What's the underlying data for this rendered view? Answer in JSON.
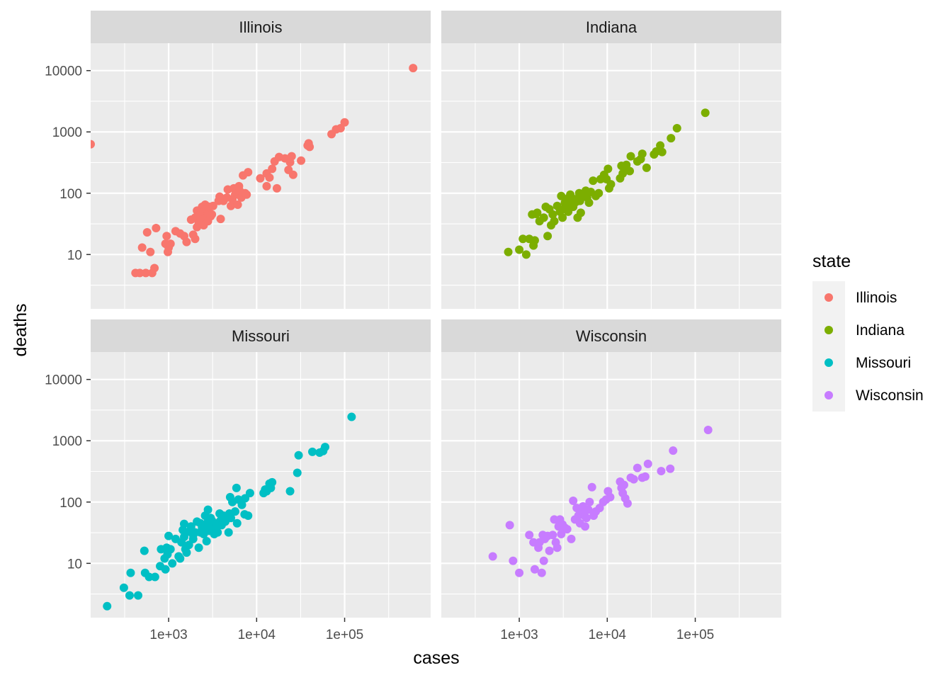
{
  "chart_data": {
    "type": "scatter",
    "facet_by": "state",
    "xlabel": "cases",
    "ylabel": "deaths",
    "x_scale": "log10",
    "y_scale": "log10",
    "xlim": [
      130,
      950000
    ],
    "ylim": [
      1.3,
      28000
    ],
    "x_ticks": [
      {
        "value": 1000,
        "label": "1e+03"
      },
      {
        "value": 10000,
        "label": "1e+04"
      },
      {
        "value": 100000,
        "label": "1e+05"
      }
    ],
    "y_ticks": [
      {
        "value": 10,
        "label": "10"
      },
      {
        "value": 100,
        "label": "100"
      },
      {
        "value": 1000,
        "label": "1000"
      },
      {
        "value": 10000,
        "label": "10000"
      }
    ],
    "grid": true,
    "legend": {
      "title": "state",
      "position": "right",
      "entries": [
        {
          "label": "Illinois",
          "color": "#F8766D"
        },
        {
          "label": "Indiana",
          "color": "#7CAE00"
        },
        {
          "label": "Missouri",
          "color": "#00BFC4"
        },
        {
          "label": "Wisconsin",
          "color": "#C77CFF"
        }
      ]
    },
    "series": [
      {
        "name": "Illinois",
        "color": "#F8766D",
        "points": [
          [
            130,
            630
          ],
          [
            420,
            5
          ],
          [
            470,
            5
          ],
          [
            500,
            13
          ],
          [
            550,
            5
          ],
          [
            570,
            23
          ],
          [
            620,
            11
          ],
          [
            650,
            5
          ],
          [
            690,
            6
          ],
          [
            720,
            27
          ],
          [
            920,
            15
          ],
          [
            950,
            20
          ],
          [
            980,
            11
          ],
          [
            1000,
            13
          ],
          [
            1050,
            15
          ],
          [
            1200,
            24
          ],
          [
            1350,
            22
          ],
          [
            1500,
            20
          ],
          [
            1600,
            16
          ],
          [
            1800,
            37
          ],
          [
            1900,
            21
          ],
          [
            2000,
            18
          ],
          [
            2000,
            40
          ],
          [
            2100,
            28
          ],
          [
            2100,
            52
          ],
          [
            2200,
            33
          ],
          [
            2200,
            43
          ],
          [
            2300,
            45
          ],
          [
            2400,
            37
          ],
          [
            2400,
            60
          ],
          [
            2500,
            30
          ],
          [
            2500,
            50
          ],
          [
            2600,
            65
          ],
          [
            2700,
            40
          ],
          [
            2700,
            55
          ],
          [
            2800,
            35
          ],
          [
            2900,
            48
          ],
          [
            2900,
            60
          ],
          [
            3000,
            42
          ],
          [
            3100,
            45
          ],
          [
            3200,
            62
          ],
          [
            3700,
            75
          ],
          [
            3800,
            88
          ],
          [
            3900,
            38
          ],
          [
            4200,
            75
          ],
          [
            4600,
            85
          ],
          [
            4700,
            115
          ],
          [
            5100,
            62
          ],
          [
            5300,
            80
          ],
          [
            5500,
            120
          ],
          [
            5700,
            95
          ],
          [
            6000,
            100
          ],
          [
            6100,
            65
          ],
          [
            6300,
            130
          ],
          [
            6400,
            110
          ],
          [
            6700,
            85
          ],
          [
            7000,
            195
          ],
          [
            7400,
            100
          ],
          [
            7700,
            95
          ],
          [
            8000,
            220
          ],
          [
            11000,
            175
          ],
          [
            13000,
            130
          ],
          [
            13000,
            210
          ],
          [
            14000,
            180
          ],
          [
            15000,
            250
          ],
          [
            16000,
            330
          ],
          [
            17000,
            120
          ],
          [
            18000,
            390
          ],
          [
            21000,
            370
          ],
          [
            23000,
            240
          ],
          [
            24000,
            320
          ],
          [
            25000,
            400
          ],
          [
            26000,
            200
          ],
          [
            32000,
            340
          ],
          [
            38000,
            600
          ],
          [
            39000,
            650
          ],
          [
            40000,
            570
          ],
          [
            71000,
            920
          ],
          [
            80000,
            1100
          ],
          [
            90000,
            1150
          ],
          [
            100000,
            1430
          ],
          [
            600000,
            11000
          ]
        ]
      },
      {
        "name": "Indiana",
        "color": "#7CAE00",
        "points": [
          [
            750,
            11
          ],
          [
            1000,
            12
          ],
          [
            1100,
            18
          ],
          [
            1200,
            10
          ],
          [
            1300,
            18
          ],
          [
            1400,
            45
          ],
          [
            1450,
            14
          ],
          [
            1500,
            17
          ],
          [
            1550,
            46
          ],
          [
            1600,
            48
          ],
          [
            1700,
            35
          ],
          [
            1900,
            40
          ],
          [
            2000,
            60
          ],
          [
            2100,
            20
          ],
          [
            2200,
            55
          ],
          [
            2300,
            30
          ],
          [
            2400,
            45
          ],
          [
            2500,
            35
          ],
          [
            2700,
            62
          ],
          [
            2900,
            50
          ],
          [
            3000,
            90
          ],
          [
            3100,
            40
          ],
          [
            3200,
            55
          ],
          [
            3300,
            70
          ],
          [
            3400,
            80
          ],
          [
            3500,
            65
          ],
          [
            3600,
            50
          ],
          [
            3800,
            95
          ],
          [
            3900,
            70
          ],
          [
            4100,
            60
          ],
          [
            4200,
            80
          ],
          [
            4400,
            72
          ],
          [
            4600,
            40
          ],
          [
            4800,
            100
          ],
          [
            4900,
            75
          ],
          [
            5000,
            48
          ],
          [
            5200,
            90
          ],
          [
            5500,
            100
          ],
          [
            5700,
            110
          ],
          [
            5900,
            85
          ],
          [
            6200,
            70
          ],
          [
            6500,
            105
          ],
          [
            6900,
            160
          ],
          [
            7400,
            90
          ],
          [
            8000,
            100
          ],
          [
            8400,
            170
          ],
          [
            9200,
            200
          ],
          [
            9800,
            170
          ],
          [
            10200,
            250
          ],
          [
            10500,
            120
          ],
          [
            11000,
            140
          ],
          [
            14000,
            175
          ],
          [
            14500,
            280
          ],
          [
            15000,
            210
          ],
          [
            15500,
            260
          ],
          [
            16500,
            290
          ],
          [
            18000,
            230
          ],
          [
            18500,
            400
          ],
          [
            22000,
            330
          ],
          [
            24000,
            360
          ],
          [
            25000,
            440
          ],
          [
            28000,
            260
          ],
          [
            34000,
            430
          ],
          [
            36000,
            480
          ],
          [
            40000,
            600
          ],
          [
            42000,
            470
          ],
          [
            53000,
            790
          ],
          [
            62000,
            1150
          ],
          [
            130000,
            2050
          ]
        ]
      },
      {
        "name": "Missouri",
        "color": "#00BFC4",
        "points": [
          [
            200,
            2
          ],
          [
            310,
            4
          ],
          [
            360,
            3
          ],
          [
            370,
            7
          ],
          [
            450,
            3
          ],
          [
            530,
            16
          ],
          [
            540,
            7
          ],
          [
            600,
            6
          ],
          [
            700,
            6
          ],
          [
            800,
            9
          ],
          [
            820,
            17
          ],
          [
            900,
            12
          ],
          [
            920,
            8
          ],
          [
            950,
            18
          ],
          [
            970,
            14
          ],
          [
            1000,
            28
          ],
          [
            1050,
            17
          ],
          [
            1100,
            10
          ],
          [
            1200,
            25
          ],
          [
            1300,
            13
          ],
          [
            1350,
            12
          ],
          [
            1400,
            22
          ],
          [
            1450,
            35
          ],
          [
            1500,
            27
          ],
          [
            1500,
            44
          ],
          [
            1550,
            17
          ],
          [
            1600,
            15
          ],
          [
            1700,
            20
          ],
          [
            1700,
            33
          ],
          [
            1800,
            40
          ],
          [
            1900,
            25
          ],
          [
            1900,
            29
          ],
          [
            2000,
            32
          ],
          [
            2100,
            48
          ],
          [
            2200,
            18
          ],
          [
            2300,
            32
          ],
          [
            2300,
            45
          ],
          [
            2400,
            38
          ],
          [
            2500,
            30
          ],
          [
            2600,
            42
          ],
          [
            2600,
            60
          ],
          [
            2700,
            23
          ],
          [
            2700,
            37
          ],
          [
            2800,
            48
          ],
          [
            2800,
            75
          ],
          [
            2900,
            34
          ],
          [
            3000,
            40
          ],
          [
            3000,
            55
          ],
          [
            3100,
            50
          ],
          [
            3300,
            30
          ],
          [
            3400,
            38
          ],
          [
            3500,
            45
          ],
          [
            3600,
            32
          ],
          [
            3800,
            65
          ],
          [
            3900,
            50
          ],
          [
            4000,
            42
          ],
          [
            4200,
            60
          ],
          [
            4400,
            48
          ],
          [
            4800,
            32
          ],
          [
            4900,
            65
          ],
          [
            5000,
            120
          ],
          [
            5100,
            55
          ],
          [
            5300,
            100
          ],
          [
            5700,
            70
          ],
          [
            5900,
            170
          ],
          [
            6000,
            45
          ],
          [
            6200,
            110
          ],
          [
            6800,
            90
          ],
          [
            7300,
            63
          ],
          [
            7400,
            115
          ],
          [
            8000,
            60
          ],
          [
            8400,
            140
          ],
          [
            12000,
            140
          ],
          [
            12500,
            160
          ],
          [
            13000,
            150
          ],
          [
            14000,
            200
          ],
          [
            14500,
            170
          ],
          [
            15000,
            210
          ],
          [
            24000,
            150
          ],
          [
            29000,
            300
          ],
          [
            30000,
            580
          ],
          [
            43000,
            660
          ],
          [
            52000,
            640
          ],
          [
            57000,
            680
          ],
          [
            60000,
            790
          ],
          [
            120000,
            2450
          ]
        ]
      },
      {
        "name": "Wisconsin",
        "color": "#C77CFF",
        "points": [
          [
            500,
            13
          ],
          [
            780,
            42
          ],
          [
            850,
            11
          ],
          [
            1000,
            7
          ],
          [
            1300,
            29
          ],
          [
            1450,
            22
          ],
          [
            1500,
            8
          ],
          [
            1650,
            18
          ],
          [
            1700,
            22
          ],
          [
            1800,
            7
          ],
          [
            1850,
            29
          ],
          [
            1900,
            11
          ],
          [
            1950,
            25
          ],
          [
            2100,
            28
          ],
          [
            2200,
            16
          ],
          [
            2400,
            29
          ],
          [
            2500,
            52
          ],
          [
            2600,
            22
          ],
          [
            2700,
            18
          ],
          [
            2800,
            40
          ],
          [
            2900,
            52
          ],
          [
            3000,
            30
          ],
          [
            3100,
            43
          ],
          [
            3300,
            38
          ],
          [
            3500,
            36
          ],
          [
            3900,
            25
          ],
          [
            4100,
            105
          ],
          [
            4300,
            52
          ],
          [
            4500,
            80
          ],
          [
            4700,
            60
          ],
          [
            4900,
            45
          ],
          [
            5100,
            72
          ],
          [
            5300,
            85
          ],
          [
            5500,
            60
          ],
          [
            5600,
            40
          ],
          [
            5800,
            55
          ],
          [
            6100,
            75
          ],
          [
            6300,
            100
          ],
          [
            6700,
            175
          ],
          [
            7000,
            60
          ],
          [
            7400,
            70
          ],
          [
            8200,
            80
          ],
          [
            9000,
            100
          ],
          [
            9700,
            110
          ],
          [
            10200,
            150
          ],
          [
            10800,
            120
          ],
          [
            14000,
            215
          ],
          [
            14500,
            170
          ],
          [
            15000,
            140
          ],
          [
            15500,
            190
          ],
          [
            16000,
            115
          ],
          [
            17000,
            95
          ],
          [
            18500,
            250
          ],
          [
            20000,
            235
          ],
          [
            22000,
            360
          ],
          [
            25000,
            250
          ],
          [
            27000,
            260
          ],
          [
            29000,
            420
          ],
          [
            41000,
            320
          ],
          [
            52000,
            350
          ],
          [
            56000,
            690
          ],
          [
            140000,
            1500
          ]
        ]
      }
    ],
    "facets": [
      {
        "label": "Illinois",
        "series": 0
      },
      {
        "label": "Indiana",
        "series": 1
      },
      {
        "label": "Missouri",
        "series": 2
      },
      {
        "label": "Wisconsin",
        "series": 3
      }
    ]
  }
}
